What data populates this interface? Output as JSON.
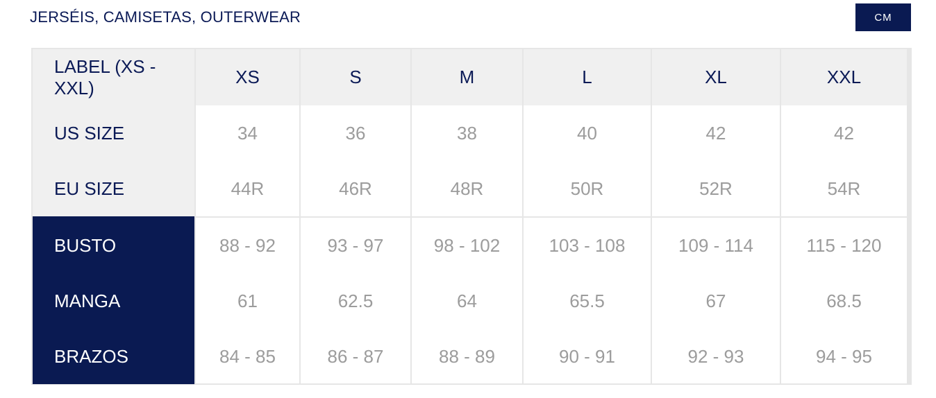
{
  "title": "JERSÉIS, CAMISETAS, OUTERWEAR",
  "unit_toggle": "CM",
  "colors": {
    "navy": "#0a1a52",
    "header_bg": "#f0f0f0",
    "value_text": "#9c9c9c",
    "border": "#e6e6e6"
  },
  "table": {
    "header": {
      "label": "LABEL (XS - XXL)",
      "sizes": [
        "XS",
        "S",
        "M",
        "L",
        "XL",
        "XXL"
      ]
    },
    "rows": [
      {
        "label": "US SIZE",
        "values": [
          "34",
          "36",
          "38",
          "40",
          "42",
          "42"
        ]
      },
      {
        "label": "EU SIZE",
        "values": [
          "44R",
          "46R",
          "48R",
          "50R",
          "52R",
          "54R"
        ]
      },
      {
        "label": "BUSTO",
        "values": [
          "88 - 92",
          "93 - 97",
          "98 - 102",
          "103 - 108",
          "109 - 114",
          "115 - 120"
        ]
      },
      {
        "label": "MANGA",
        "values": [
          "61",
          "62.5",
          "64",
          "65.5",
          "67",
          "68.5"
        ]
      },
      {
        "label": "BRAZOS",
        "values": [
          "84 - 85",
          "86 - 87",
          "88 - 89",
          "90 - 91",
          "92 - 93",
          "94 - 95"
        ]
      }
    ]
  }
}
